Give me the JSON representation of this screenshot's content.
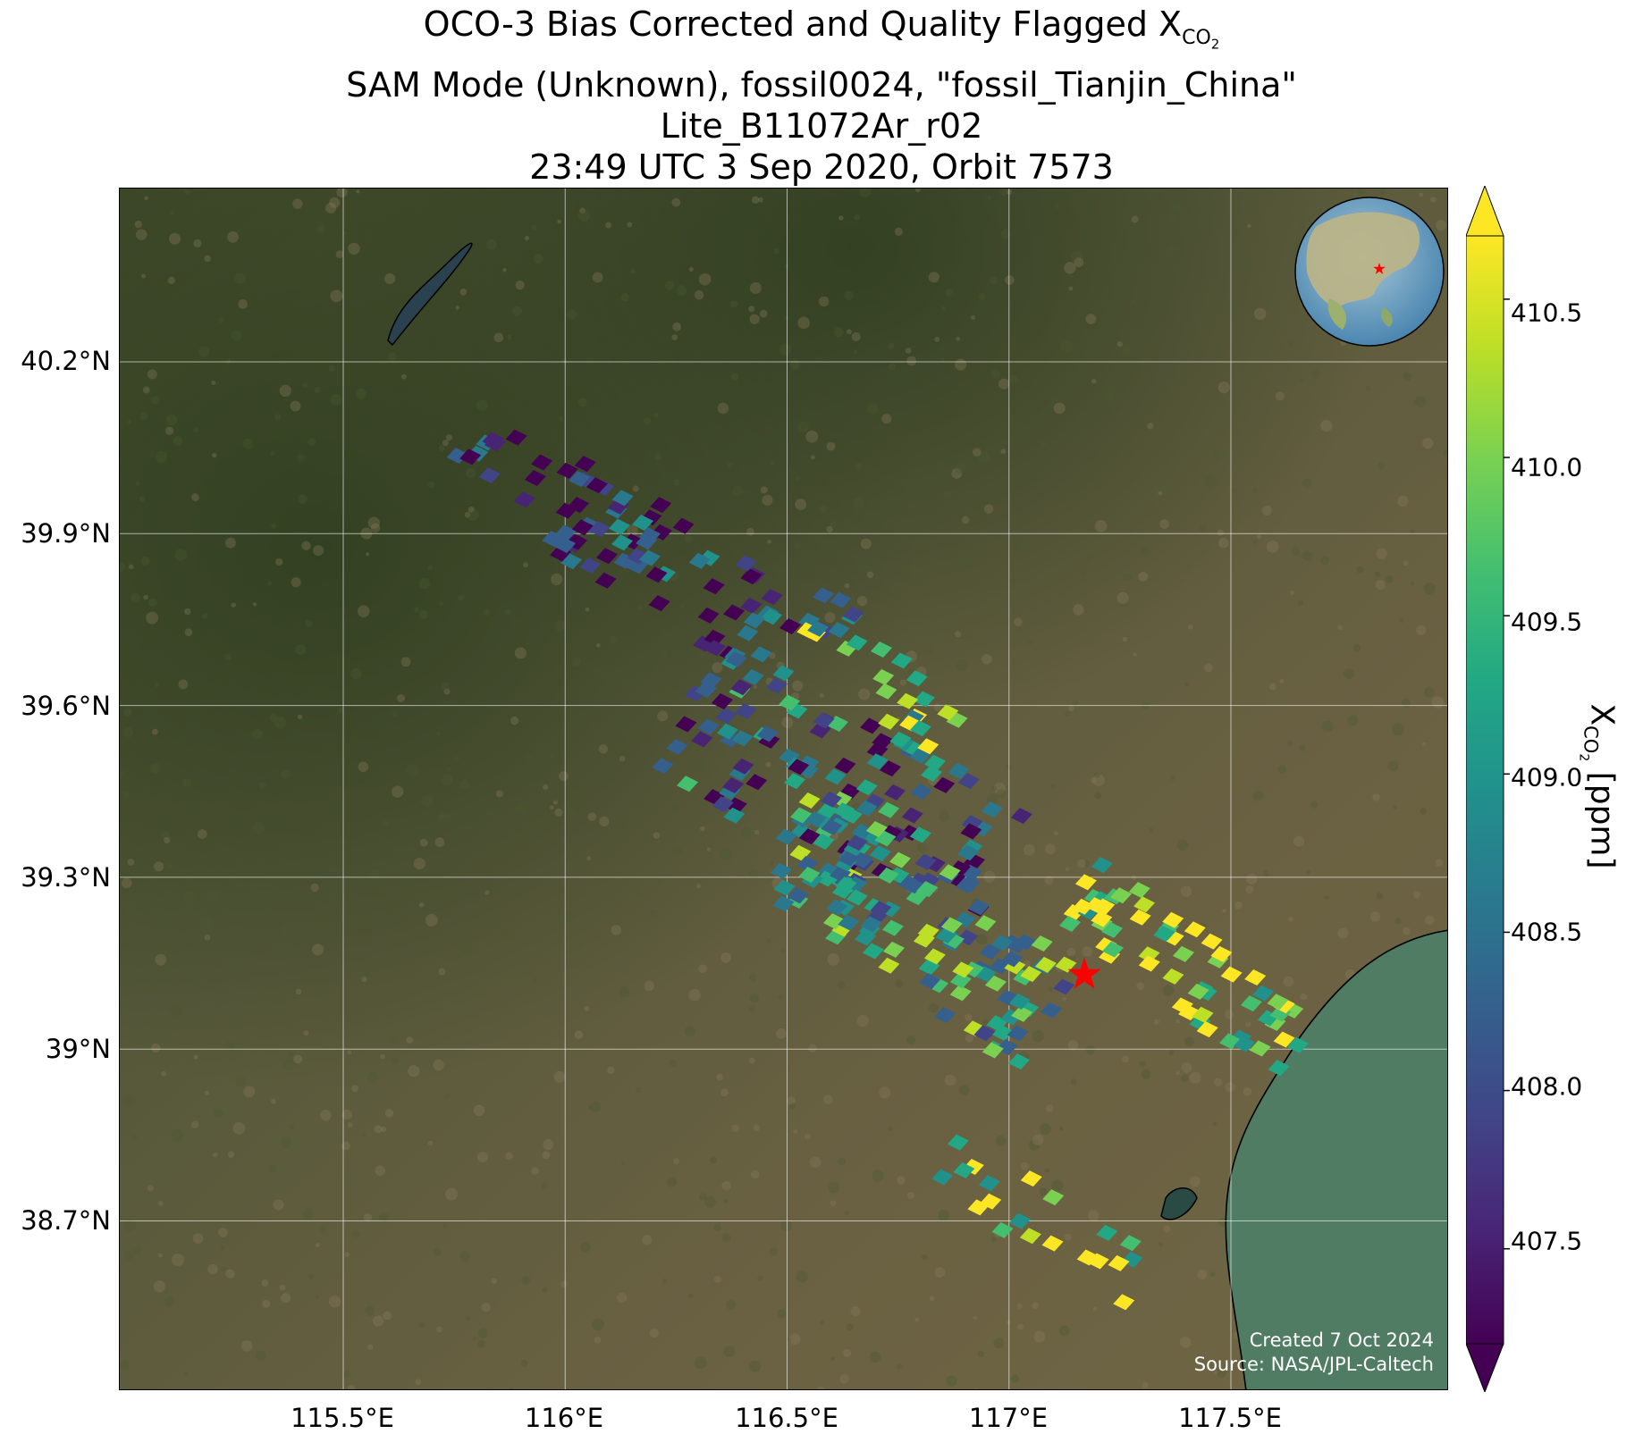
{
  "title": {
    "line1_prefix": "OCO-3 Bias Corrected and Quality Flagged X",
    "line1_sub": "CO",
    "line1_subsub": "2",
    "line2": "SAM Mode (Unknown), fossil0024, \"fossil_Tianjin_China\"",
    "line3": "Lite_B11072Ar_r02",
    "line4": "23:49 UTC 3 Sep 2020, Orbit 7573"
  },
  "map": {
    "lat_labels": [
      "40.2°N",
      "39.9°N",
      "39.6°N",
      "39.3°N",
      "39°N",
      "38.7°N"
    ],
    "lon_labels": [
      "115.5°E",
      "116°E",
      "116.5°E",
      "117°E",
      "117.5°E"
    ],
    "lat_values": [
      40.2,
      39.9,
      39.6,
      39.3,
      39.0,
      38.7
    ],
    "lon_values": [
      115.5,
      116.0,
      116.5,
      117.0,
      117.5
    ],
    "target_marker": {
      "name": "fossil_Tianjin_China",
      "lon": 117.17,
      "lat": 39.13,
      "color": "#ff0000"
    },
    "inset_globe": "globe-inset-icon",
    "colors": {
      "ocean": "#3d7a6a",
      "land": "#5b5a37",
      "gridline": "#ffffff"
    }
  },
  "credit": {
    "line1": "Created 7 Oct 2024",
    "line2": "Source: NASA/JPL-Caltech"
  },
  "colorbar": {
    "label_prefix": "X",
    "label_sub": "CO",
    "label_subsub": "2",
    "label_suffix": " [ppm]",
    "ticks": [
      "410.5",
      "410.0",
      "409.5",
      "409.0",
      "408.5",
      "408.0",
      "407.5"
    ],
    "tick_values": [
      410.5,
      410.0,
      409.5,
      409.0,
      408.5,
      408.0,
      407.5
    ],
    "range": [
      407.2,
      410.7
    ],
    "colormap": "viridis",
    "extend": "both"
  }
}
